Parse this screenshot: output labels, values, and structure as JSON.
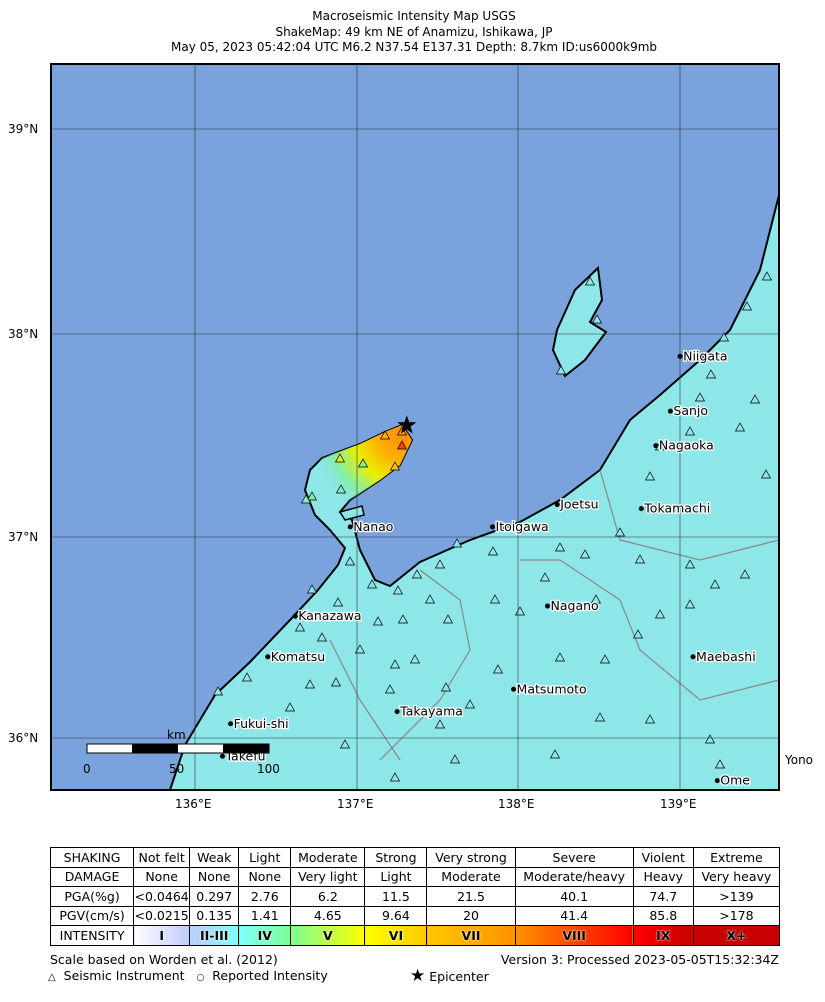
{
  "title": {
    "line1": "Macroseismic Intensity Map USGS",
    "line2": "ShakeMap: 49 km NE of Anamizu, Ishikawa, JP",
    "line3": "May 05, 2023 05:42:04 UTC M6.2 N37.54 E137.31 Depth: 8.7km ID:us6000k9mb"
  },
  "map": {
    "lat_ticks": [
      "39°N",
      "38°N",
      "37°N",
      "36°N"
    ],
    "lon_ticks": [
      "136°E",
      "137°E",
      "138°E",
      "139°E"
    ],
    "ocean_color": "#7aa2dc",
    "land_color": "#8de6e8",
    "epicenter": {
      "lon": 137.31,
      "lat": 37.54
    },
    "cities": [
      {
        "name": "Niigata",
        "lon": 139.0,
        "lat": 37.88
      },
      {
        "name": "Sanjo",
        "lon": 138.94,
        "lat": 37.61
      },
      {
        "name": "Nagaoka",
        "lon": 138.85,
        "lat": 37.44
      },
      {
        "name": "Joetsu",
        "lon": 138.24,
        "lat": 37.15
      },
      {
        "name": "Tokamachi",
        "lon": 138.76,
        "lat": 37.13
      },
      {
        "name": "Itoigawa",
        "lon": 137.84,
        "lat": 37.04
      },
      {
        "name": "Nanao",
        "lon": 136.96,
        "lat": 37.04
      },
      {
        "name": "Nagano",
        "lon": 138.18,
        "lat": 36.65
      },
      {
        "name": "Kanazawa",
        "lon": 136.62,
        "lat": 36.6
      },
      {
        "name": "Komatsu",
        "lon": 136.45,
        "lat": 36.4
      },
      {
        "name": "Maebashi",
        "lon": 139.08,
        "lat": 36.4
      },
      {
        "name": "Matsumoto",
        "lon": 137.97,
        "lat": 36.24
      },
      {
        "name": "Takayama",
        "lon": 137.25,
        "lat": 36.13
      },
      {
        "name": "Fukui-shi",
        "lon": 136.22,
        "lat": 36.07
      },
      {
        "name": "Takefu",
        "lon": 136.17,
        "lat": 35.91
      },
      {
        "name": "Ome",
        "lon": 139.23,
        "lat": 35.79
      }
    ],
    "outside_label": "Yono",
    "scale": {
      "unit": "km",
      "labels": [
        "0",
        "50",
        "100"
      ]
    }
  },
  "legend": {
    "rows": [
      [
        "SHAKING",
        "Not felt",
        "Weak",
        "Light",
        "Moderate",
        "Strong",
        "Very strong",
        "Severe",
        "Violent",
        "Extreme"
      ],
      [
        "DAMAGE",
        "None",
        "None",
        "None",
        "Very light",
        "Light",
        "Moderate",
        "Moderate/heavy",
        "Heavy",
        "Very heavy"
      ],
      [
        "PGA(%g)",
        "<0.0464",
        "0.297",
        "2.76",
        "6.2",
        "11.5",
        "21.5",
        "40.1",
        "74.7",
        ">139"
      ],
      [
        "PGV(cm/s)",
        "<0.0215",
        "0.135",
        "1.41",
        "4.65",
        "9.64",
        "20",
        "41.4",
        "85.8",
        ">178"
      ]
    ],
    "intensity": [
      "INTENSITY",
      "I",
      "II-III",
      "IV",
      "V",
      "VI",
      "VII",
      "VIII",
      "IX",
      "X+"
    ],
    "intensity_colors": [
      "#ffffff",
      "#bfccff",
      "#80ffff",
      "#7aff93",
      "#ffff00",
      "#ffc800",
      "#ff9100",
      "#ff0000",
      "#c80000"
    ],
    "scale_note": "Scale based on Worden et al. (2012)",
    "version": "Version 3: Processed 2023-05-05T15:32:34Z",
    "instrument": "Seismic Instrument",
    "reported": "Reported Intensity",
    "epicenter": "Epicenter"
  }
}
